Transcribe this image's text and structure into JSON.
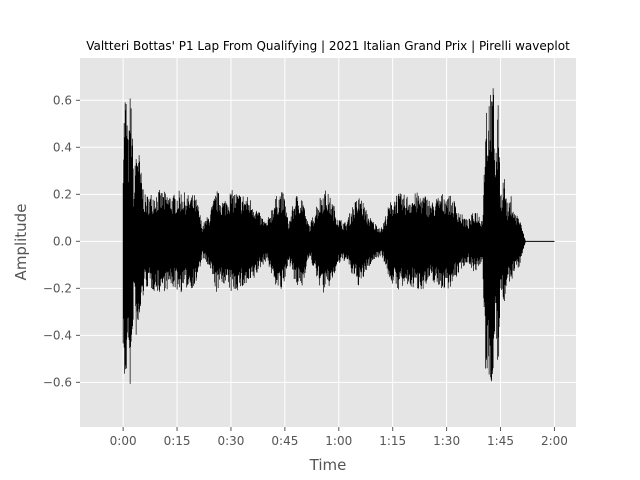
{
  "chart_data": {
    "type": "line",
    "title": "Valtteri Bottas' P1 Lap From Qualifying | 2021 Italian Grand Prix | Pirelli waveplot",
    "xlabel": "Time",
    "ylabel": "Amplitude",
    "xlim": [
      -12,
      126
    ],
    "ylim": [
      -0.79,
      0.78
    ],
    "grid": true,
    "x_ticks": [
      {
        "value": 0,
        "label": "0:00"
      },
      {
        "value": 15,
        "label": "0:15"
      },
      {
        "value": 30,
        "label": "0:30"
      },
      {
        "value": 45,
        "label": "0:45"
      },
      {
        "value": 60,
        "label": "1:00"
      },
      {
        "value": 75,
        "label": "1:15"
      },
      {
        "value": 90,
        "label": "1:30"
      },
      {
        "value": 105,
        "label": "1:45"
      },
      {
        "value": 120,
        "label": "2:00"
      }
    ],
    "y_ticks": [
      {
        "value": -0.6,
        "label": "−0.6"
      },
      {
        "value": -0.4,
        "label": "−0.4"
      },
      {
        "value": -0.2,
        "label": "−0.2"
      },
      {
        "value": 0.0,
        "label": "0.0"
      },
      {
        "value": 0.2,
        "label": "0.2"
      },
      {
        "value": 0.4,
        "label": "0.4"
      },
      {
        "value": 0.6,
        "label": "0.6"
      }
    ],
    "series": [
      {
        "color": "#000000",
        "envelope": {
          "t": [
            0,
            0.5,
            1,
            1.5,
            2,
            2.5,
            3,
            3.5,
            4,
            5,
            6,
            7,
            8,
            10,
            12,
            14,
            16,
            18,
            20,
            21,
            22,
            24,
            26,
            28,
            30,
            32,
            34,
            36,
            38,
            40,
            42,
            44,
            45,
            46,
            48,
            50,
            51,
            52,
            54,
            56,
            58,
            60,
            62,
            64,
            66,
            68,
            70,
            72,
            74,
            76,
            78,
            80,
            82,
            84,
            86,
            88,
            90,
            92,
            94,
            96,
            98,
            100,
            100.5,
            101,
            101.5,
            102,
            102.5,
            103,
            103.5,
            104,
            104.5,
            105,
            106,
            107,
            108,
            109,
            110,
            111,
            112,
            120
          ],
          "amp": [
            0.45,
            0.67,
            0.62,
            0.4,
            0.66,
            0.55,
            0.2,
            0.4,
            0.45,
            0.3,
            0.2,
            0.2,
            0.21,
            0.22,
            0.21,
            0.2,
            0.22,
            0.2,
            0.2,
            0.15,
            0.07,
            0.12,
            0.22,
            0.18,
            0.22,
            0.21,
            0.2,
            0.18,
            0.12,
            0.08,
            0.18,
            0.22,
            0.19,
            0.08,
            0.2,
            0.2,
            0.1,
            0.07,
            0.17,
            0.23,
            0.18,
            0.1,
            0.08,
            0.16,
            0.2,
            0.12,
            0.08,
            0.06,
            0.16,
            0.21,
            0.2,
            0.2,
            0.21,
            0.2,
            0.17,
            0.2,
            0.21,
            0.18,
            0.12,
            0.09,
            0.14,
            0.1,
            0.35,
            0.68,
            0.5,
            0.7,
            0.6,
            0.72,
            0.4,
            0.45,
            0.65,
            0.2,
            0.3,
            0.14,
            0.2,
            0.12,
            0.12,
            0.06,
            0.0,
            0.0
          ]
        }
      }
    ]
  }
}
